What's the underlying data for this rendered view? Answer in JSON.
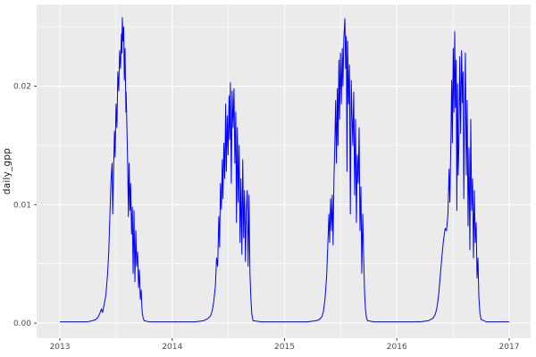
{
  "figure": {
    "background": "#FFFFFF",
    "panel_background": "#EBEBEB",
    "grid_major_color": "#FFFFFF",
    "grid_minor_color": "#FFFFFF",
    "tick_label_color": "#4D4D4D",
    "tick_mark_color": "#333333",
    "axis_title_color": "#1A1A1A"
  },
  "chart_data": {
    "type": "line",
    "title": "",
    "xlabel": "",
    "ylabel": "daily_gpp",
    "legend_position": "none",
    "grid": true,
    "line_color": "#0000FF",
    "xlim": [
      2012.793,
      2017.191
    ],
    "ylim": [
      -0.00128,
      0.0269
    ],
    "x_ticks": {
      "values": [
        2013,
        2014,
        2015,
        2016,
        2017
      ],
      "labels": [
        "2013",
        "2014",
        "2015",
        "2016",
        "2017"
      ]
    },
    "y_ticks": {
      "values": [
        0,
        0.01,
        0.02
      ],
      "labels": [
        "0.00",
        "0.01",
        "0.02"
      ]
    },
    "x_minor": [
      2013.5,
      2014.5,
      2015.5,
      2016.5
    ],
    "y_minor": [
      0.005,
      0.015,
      0.025
    ],
    "series": [
      {
        "name": "daily_gpp",
        "color": "#0000FF",
        "points": [
          [
            2013.0,
            0.0001
          ],
          [
            2013.06,
            0.0001
          ],
          [
            2013.12,
            0.0001
          ],
          [
            2013.18,
            0.0001
          ],
          [
            2013.24,
            0.0001
          ],
          [
            2013.29,
            0.0002
          ],
          [
            2013.32,
            0.0003
          ],
          [
            2013.34,
            0.0005
          ],
          [
            2013.355,
            0.0008
          ],
          [
            2013.37,
            0.0012
          ],
          [
            2013.38,
            0.0009
          ],
          [
            2013.395,
            0.0016
          ],
          [
            2013.41,
            0.0024
          ],
          [
            2013.425,
            0.0042
          ],
          [
            2013.435,
            0.006
          ],
          [
            2013.445,
            0.009
          ],
          [
            2013.455,
            0.012
          ],
          [
            2013.465,
            0.0135
          ],
          [
            2013.47,
            0.0092
          ],
          [
            2013.478,
            0.0128
          ],
          [
            2013.486,
            0.0162
          ],
          [
            2013.492,
            0.014
          ],
          [
            2013.5,
            0.0185
          ],
          [
            2013.508,
            0.0165
          ],
          [
            2013.516,
            0.0212
          ],
          [
            2013.524,
            0.0196
          ],
          [
            2013.532,
            0.023
          ],
          [
            2013.54,
            0.0215
          ],
          [
            2013.548,
            0.0244
          ],
          [
            2013.552,
            0.0228
          ],
          [
            2013.556,
            0.0258
          ],
          [
            2013.562,
            0.0238
          ],
          [
            2013.568,
            0.025
          ],
          [
            2013.574,
            0.0205
          ],
          [
            2013.58,
            0.0232
          ],
          [
            2013.588,
            0.0178
          ],
          [
            2013.59,
            0.0195
          ],
          [
            2013.598,
            0.016
          ],
          [
            2013.604,
            0.0132
          ],
          [
            2013.61,
            0.009
          ],
          [
            2013.616,
            0.0135
          ],
          [
            2013.624,
            0.0095
          ],
          [
            2013.63,
            0.0118
          ],
          [
            2013.638,
            0.0075
          ],
          [
            2013.645,
            0.0098
          ],
          [
            2013.652,
            0.0042
          ],
          [
            2013.66,
            0.0095
          ],
          [
            2013.668,
            0.0035
          ],
          [
            2013.676,
            0.0078
          ],
          [
            2013.684,
            0.0048
          ],
          [
            2013.692,
            0.006
          ],
          [
            2013.7,
            0.003
          ],
          [
            2013.708,
            0.0045
          ],
          [
            2013.716,
            0.002
          ],
          [
            2013.724,
            0.0028
          ],
          [
            2013.732,
            0.001
          ],
          [
            2013.74,
            0.0005
          ],
          [
            2013.75,
            0.0002
          ],
          [
            2013.8,
            0.0001
          ],
          [
            2013.9,
            0.0001
          ],
          [
            2014.0,
            0.0001
          ],
          [
            2014.1,
            0.0001
          ],
          [
            2014.2,
            0.0001
          ],
          [
            2014.28,
            0.0002
          ],
          [
            2014.32,
            0.0004
          ],
          [
            2014.34,
            0.0006
          ],
          [
            2014.355,
            0.001
          ],
          [
            2014.37,
            0.0018
          ],
          [
            2014.385,
            0.0032
          ],
          [
            2014.395,
            0.0055
          ],
          [
            2014.405,
            0.0048
          ],
          [
            2014.415,
            0.009
          ],
          [
            2014.422,
            0.0064
          ],
          [
            2014.43,
            0.0118
          ],
          [
            2014.438,
            0.0096
          ],
          [
            2014.446,
            0.0138
          ],
          [
            2014.452,
            0.0105
          ],
          [
            2014.46,
            0.0152
          ],
          [
            2014.468,
            0.0122
          ],
          [
            2014.476,
            0.0185
          ],
          [
            2014.482,
            0.0128
          ],
          [
            2014.49,
            0.0175
          ],
          [
            2014.498,
            0.0142
          ],
          [
            2014.506,
            0.0192
          ],
          [
            2014.512,
            0.0155
          ],
          [
            2014.518,
            0.0203
          ],
          [
            2014.526,
            0.0118
          ],
          [
            2014.534,
            0.0196
          ],
          [
            2014.542,
            0.0165
          ],
          [
            2014.55,
            0.0198
          ],
          [
            2014.558,
            0.0135
          ],
          [
            2014.566,
            0.0178
          ],
          [
            2014.572,
            0.0085
          ],
          [
            2014.58,
            0.0165
          ],
          [
            2014.588,
            0.0102
          ],
          [
            2014.596,
            0.015
          ],
          [
            2014.604,
            0.0068
          ],
          [
            2014.612,
            0.0122
          ],
          [
            2014.62,
            0.0058
          ],
          [
            2014.628,
            0.0138
          ],
          [
            2014.636,
            0.0072
          ],
          [
            2014.644,
            0.0112
          ],
          [
            2014.652,
            0.0052
          ],
          [
            2014.66,
            0.0095
          ],
          [
            2014.668,
            0.0112
          ],
          [
            2014.676,
            0.0048
          ],
          [
            2014.684,
            0.0108
          ],
          [
            2014.692,
            0.0042
          ],
          [
            2014.7,
            0.0022
          ],
          [
            2014.708,
            0.0008
          ],
          [
            2014.72,
            0.0002
          ],
          [
            2014.8,
            0.0001
          ],
          [
            2014.9,
            0.0001
          ],
          [
            2015.0,
            0.0001
          ],
          [
            2015.1,
            0.0001
          ],
          [
            2015.2,
            0.0001
          ],
          [
            2015.28,
            0.0002
          ],
          [
            2015.31,
            0.0003
          ],
          [
            2015.33,
            0.0005
          ],
          [
            2015.345,
            0.0009
          ],
          [
            2015.36,
            0.002
          ],
          [
            2015.375,
            0.004
          ],
          [
            2015.385,
            0.0065
          ],
          [
            2015.395,
            0.0092
          ],
          [
            2015.402,
            0.0068
          ],
          [
            2015.41,
            0.0105
          ],
          [
            2015.418,
            0.0078
          ],
          [
            2015.425,
            0.0108
          ],
          [
            2015.432,
            0.0066
          ],
          [
            2015.44,
            0.0122
          ],
          [
            2015.448,
            0.0152
          ],
          [
            2015.455,
            0.0188
          ],
          [
            2015.462,
            0.0135
          ],
          [
            2015.47,
            0.0198
          ],
          [
            2015.476,
            0.015
          ],
          [
            2015.484,
            0.0222
          ],
          [
            2015.49,
            0.0172
          ],
          [
            2015.498,
            0.0228
          ],
          [
            2015.506,
            0.0185
          ],
          [
            2015.514,
            0.0232
          ],
          [
            2015.52,
            0.02
          ],
          [
            2015.528,
            0.024
          ],
          [
            2015.537,
            0.0257
          ],
          [
            2015.544,
            0.0215
          ],
          [
            2015.55,
            0.0242
          ],
          [
            2015.556,
            0.0128
          ],
          [
            2015.562,
            0.0238
          ],
          [
            2015.57,
            0.0185
          ],
          [
            2015.578,
            0.0218
          ],
          [
            2015.586,
            0.0092
          ],
          [
            2015.594,
            0.0205
          ],
          [
            2015.6,
            0.0178
          ],
          [
            2015.608,
            0.015
          ],
          [
            2015.616,
            0.0195
          ],
          [
            2015.624,
            0.0108
          ],
          [
            2015.632,
            0.0172
          ],
          [
            2015.64,
            0.0085
          ],
          [
            2015.648,
            0.0142
          ],
          [
            2015.656,
            0.0118
          ],
          [
            2015.664,
            0.0165
          ],
          [
            2015.672,
            0.0078
          ],
          [
            2015.68,
            0.0115
          ],
          [
            2015.688,
            0.0042
          ],
          [
            2015.696,
            0.0092
          ],
          [
            2015.704,
            0.0058
          ],
          [
            2015.712,
            0.0028
          ],
          [
            2015.72,
            0.0012
          ],
          [
            2015.73,
            0.0004
          ],
          [
            2015.74,
            0.0002
          ],
          [
            2015.8,
            0.0001
          ],
          [
            2015.9,
            0.0001
          ],
          [
            2016.0,
            0.0001
          ],
          [
            2016.1,
            0.0001
          ],
          [
            2016.2,
            0.0001
          ],
          [
            2016.28,
            0.0002
          ],
          [
            2016.32,
            0.0004
          ],
          [
            2016.34,
            0.0007
          ],
          [
            2016.355,
            0.0012
          ],
          [
            2016.37,
            0.0022
          ],
          [
            2016.385,
            0.0038
          ],
          [
            2016.4,
            0.0055
          ],
          [
            2016.415,
            0.007
          ],
          [
            2016.43,
            0.008
          ],
          [
            2016.442,
            0.0078
          ],
          [
            2016.455,
            0.0092
          ],
          [
            2016.465,
            0.013
          ],
          [
            2016.472,
            0.0102
          ],
          [
            2016.48,
            0.0148
          ],
          [
            2016.488,
            0.0205
          ],
          [
            2016.494,
            0.0152
          ],
          [
            2016.502,
            0.0232
          ],
          [
            2016.508,
            0.0178
          ],
          [
            2016.515,
            0.0246
          ],
          [
            2016.521,
            0.0182
          ],
          [
            2016.528,
            0.0222
          ],
          [
            2016.534,
            0.0095
          ],
          [
            2016.54,
            0.0202
          ],
          [
            2016.546,
            0.0125
          ],
          [
            2016.552,
            0.0148
          ],
          [
            2016.56,
            0.0225
          ],
          [
            2016.568,
            0.016
          ],
          [
            2016.576,
            0.023
          ],
          [
            2016.584,
            0.0186
          ],
          [
            2016.59,
            0.0212
          ],
          [
            2016.596,
            0.0105
          ],
          [
            2016.602,
            0.0168
          ],
          [
            2016.61,
            0.0228
          ],
          [
            2016.618,
            0.0125
          ],
          [
            2016.626,
            0.0188
          ],
          [
            2016.634,
            0.0082
          ],
          [
            2016.642,
            0.0148
          ],
          [
            2016.65,
            0.0062
          ],
          [
            2016.658,
            0.0172
          ],
          [
            2016.666,
            0.0095
          ],
          [
            2016.674,
            0.0122
          ],
          [
            2016.682,
            0.0055
          ],
          [
            2016.69,
            0.0112
          ],
          [
            2016.698,
            0.0068
          ],
          [
            2016.706,
            0.0085
          ],
          [
            2016.714,
            0.0038
          ],
          [
            2016.722,
            0.0055
          ],
          [
            2016.73,
            0.0022
          ],
          [
            2016.74,
            0.0008
          ],
          [
            2016.75,
            0.0003
          ],
          [
            2016.8,
            0.0001
          ],
          [
            2016.85,
            0.0001
          ],
          [
            2016.9,
            0.0001
          ],
          [
            2016.95,
            0.0001
          ],
          [
            2017.0,
            0.0001
          ]
        ]
      }
    ]
  }
}
